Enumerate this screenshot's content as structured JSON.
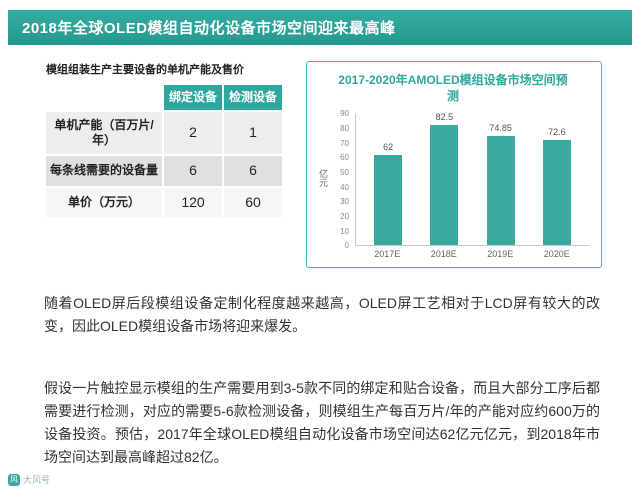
{
  "banner": {
    "title": "2018年全球OLED模组自动化设备市场空间迎来最高峰"
  },
  "table": {
    "title": "模组组装生产主要设备的单机产能及售价",
    "col_headers": [
      "",
      "绑定设备",
      "检测设备"
    ],
    "rows": [
      {
        "label": "单机产能（百万片/年）",
        "values": [
          "2",
          "1"
        ]
      },
      {
        "label": "每条线需要的设备量",
        "values": [
          "6",
          "6"
        ]
      },
      {
        "label": "单价（万元）",
        "values": [
          "120",
          "60"
        ]
      }
    ]
  },
  "chart_data": {
    "type": "bar",
    "title": "2017-2020年AMOLED模组设备市场空间预测",
    "categories": [
      "2017E",
      "2018E",
      "2019E",
      "2020E"
    ],
    "values": [
      62,
      82.5,
      74.85,
      72.6
    ],
    "xlabel": "",
    "ylabel": "亿元",
    "ylim": [
      0,
      90
    ],
    "yticks": [
      0,
      10,
      20,
      30,
      40,
      50,
      60,
      70,
      80,
      90
    ],
    "grid": false,
    "legend": "none",
    "bar_color": "#3aa99f"
  },
  "paragraphs": [
    "随着OLED屏后段模组设备定制化程度越来越高，OLED屏工艺相对于LCD屏有较大的改变，因此OLED模组设备市场将迎来爆发。",
    "假设一片触控显示模组的生产需要用到3-5款不同的绑定和贴合设备，而且大部分工序后都需要进行检测，对应的需要5-6款检测设备，则模组生产每百万片/年的产能对应约600万的设备投资。预估，2017年全球OLED模组自动化设备市场空间达62亿元亿元，到2018年市场空间达到最高峰超过82亿。"
  ],
  "watermark": {
    "text": "大风号"
  },
  "colors": {
    "accent": "#2fa79e",
    "bar": "#3aa99f",
    "banner_bg": "#2a9e95"
  }
}
